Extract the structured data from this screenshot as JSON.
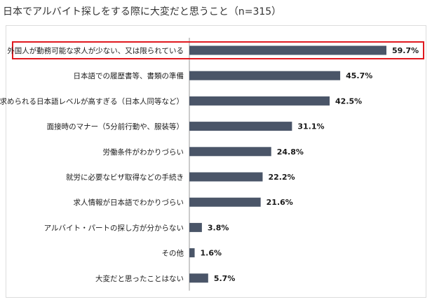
{
  "title": "日本でアルバイト探しをする際に大変だと思うこと（n=315）",
  "chart_data": {
    "type": "bar",
    "orientation": "horizontal",
    "title": "日本でアルバイト探しをする際に大変だと思うこと（n=315）",
    "xlabel": "",
    "ylabel": "",
    "unit": "%",
    "xlim": [
      0,
      60
    ],
    "grid": false,
    "legend": "none",
    "highlight_index": 0,
    "colors": {
      "bar": "#4a5568",
      "highlight_border": "#e0191f",
      "axis": "#999999"
    },
    "categories": [
      "外国人が勤務可能な求人が少ない、又は限られている",
      "日本語での履歴書等、書類の準備",
      "求められる日本語レベルが高すぎる（日本人同等など）",
      "面接時のマナー（5分前行動や、服装等）",
      "労働条件がわかりづらい",
      "就労に必要なビザ取得などの手続き",
      "求人情報が日本語でわかりづらい",
      "アルバイト・パートの探し方が分からない",
      "その他",
      "大変だと思ったことはない"
    ],
    "values": [
      59.7,
      45.7,
      42.5,
      31.1,
      24.8,
      22.2,
      21.6,
      3.8,
      1.6,
      5.7
    ],
    "value_labels": [
      "59.7%",
      "45.7%",
      "42.5%",
      "31.1%",
      "24.8%",
      "22.2%",
      "21.6%",
      "3.8%",
      "1.6%",
      "5.7%"
    ]
  }
}
